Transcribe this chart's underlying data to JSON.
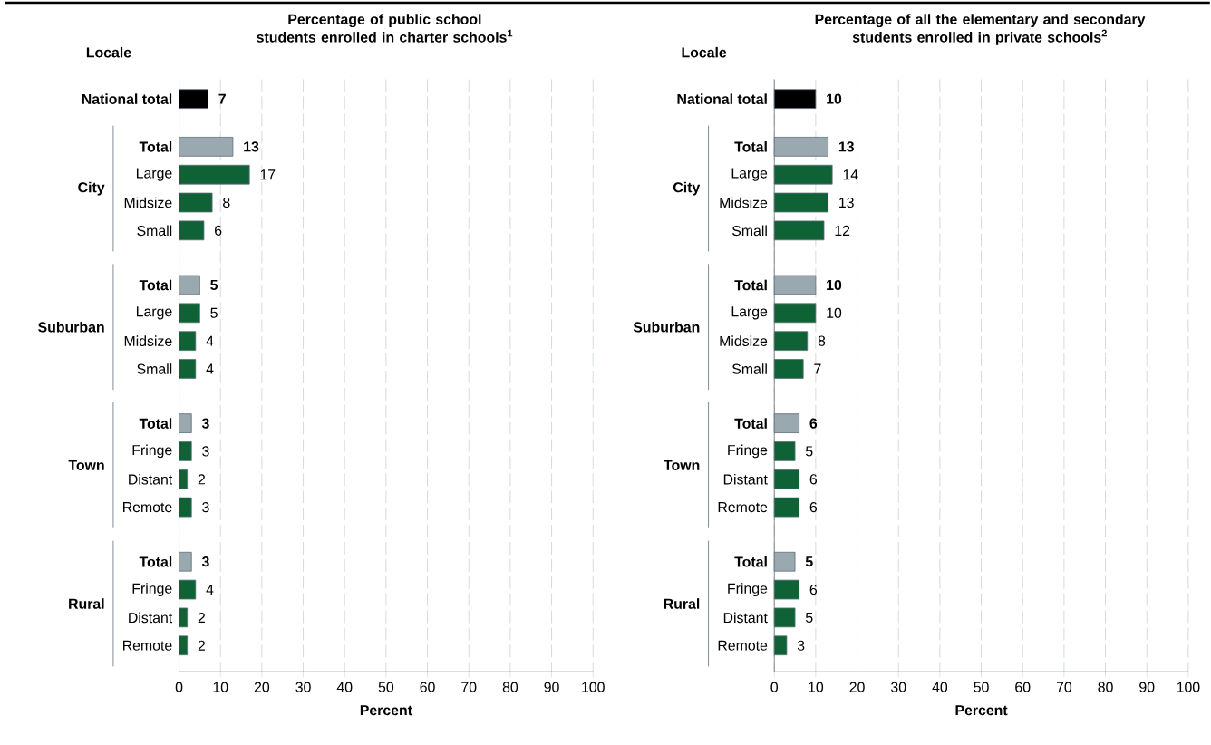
{
  "chart_data": [
    {
      "type": "bar",
      "orientation": "horizontal",
      "title": "Percentage of public school students enrolled in charter schools$^{1}$",
      "ylabel": "Locale",
      "xlabel": "Percent",
      "categories": [
        "National total",
        "Total",
        "Large",
        "Midsize",
        "Small",
        "Total",
        "Large",
        "Midsize",
        "Small",
        "Total",
        "Fringe",
        "Distant",
        "Remote",
        "Total",
        "Fringe",
        "Distant",
        "Remote"
      ],
      "values": [
        7,
        13,
        17,
        8,
        6,
        5,
        5,
        4,
        4,
        3,
        3,
        2,
        3,
        3,
        4,
        2,
        2
      ],
      "colors": [
        "#000000",
        "#9aa8b0",
        "#0f6235",
        "#0f6235",
        "#0f6235",
        "#9aa8b0",
        "#0f6235",
        "#0f6235",
        "#0f6235",
        "#9aa8b0",
        "#0f6235",
        "#0f6235",
        "#0f6235",
        "#9aa8b0",
        "#0f6235",
        "#0f6235",
        "#0f6235"
      ],
      "annotations": [
        "City",
        "Suburban",
        "Town",
        "Rural"
      ],
      "xlim": [
        0,
        100
      ],
      "xticks": [
        0,
        10,
        20,
        30,
        40,
        50,
        60,
        70,
        80,
        90,
        100
      ],
      "grid": "x",
      "data_labels": true
    },
    {
      "type": "bar",
      "orientation": "horizontal",
      "title": "Percentage of all the elementary and secondary students enrolled in private schools$^{2}$",
      "ylabel": "Locale",
      "xlabel": "Percent",
      "categories": [
        "National total",
        "Total",
        "Large",
        "Midsize",
        "Small",
        "Total",
        "Large",
        "Midsize",
        "Small",
        "Total",
        "Fringe",
        "Distant",
        "Remote",
        "Total",
        "Fringe",
        "Distant",
        "Remote"
      ],
      "values": [
        10,
        13,
        14,
        13,
        12,
        10,
        10,
        8,
        7,
        6,
        5,
        6,
        6,
        5,
        6,
        5,
        3
      ],
      "colors": [
        "#000000",
        "#9aa8b0",
        "#0f6235",
        "#0f6235",
        "#0f6235",
        "#9aa8b0",
        "#0f6235",
        "#0f6235",
        "#0f6235",
        "#9aa8b0",
        "#0f6235",
        "#0f6235",
        "#0f6235",
        "#9aa8b0",
        "#0f6235",
        "#0f6235",
        "#0f6235"
      ],
      "annotations": [
        "City",
        "Suburban",
        "Town",
        "Rural"
      ],
      "xlim": [
        0,
        100
      ],
      "xticks": [
        0,
        10,
        20,
        30,
        40,
        50,
        60,
        70,
        80,
        90,
        100
      ],
      "grid": "x",
      "data_labels": true
    }
  ]
}
